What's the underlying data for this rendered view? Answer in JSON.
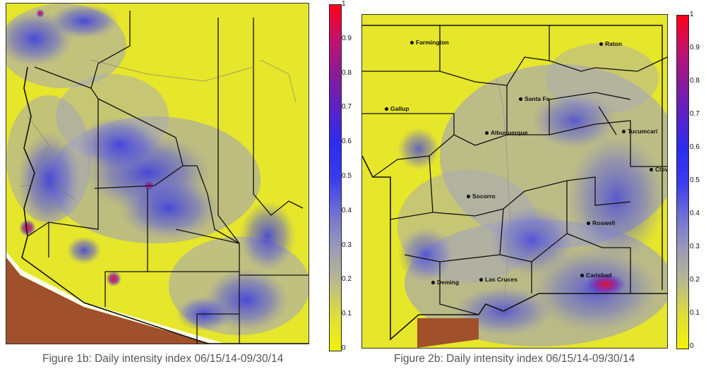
{
  "map1": {
    "caption": "Figure 1b: Daily intensity index 06/15/14-09/30/14",
    "colors": {
      "low": "#e8e81a",
      "mid": "#3c3ce8",
      "high": "#e0102a",
      "outside": "#a0502a",
      "boundary": "#111111"
    }
  },
  "map2": {
    "caption": "Figure 2b: Daily intensity index 06/15/14-09/30/14",
    "cities": [
      "Farmington",
      "Raton",
      "Santa Fe",
      "Gallup",
      "Albuquerque",
      "Tucumcari",
      "Clovis",
      "Socorro",
      "Roswell",
      "Carlsbad",
      "Deming",
      "Las Cruces"
    ]
  },
  "colorbar": {
    "ticks": [
      "1",
      "0.9",
      "0.8",
      "0.7",
      "0.6",
      "0.5",
      "0.4",
      "0.3",
      "0.2",
      "0.1",
      "0"
    ],
    "range": [
      0,
      1
    ]
  }
}
